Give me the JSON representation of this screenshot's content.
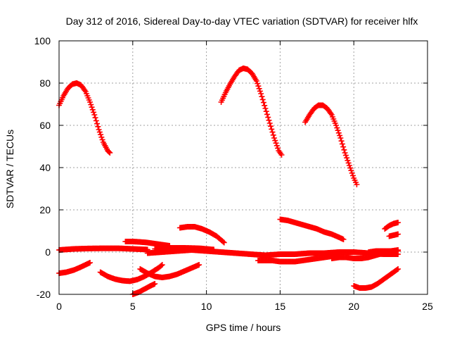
{
  "chart_data": {
    "type": "scatter",
    "title": "Day 312 of 2016, Sidereal Day-to-day VTEC variation (SDTVAR) for receiver hlfx",
    "xlabel": "GPS time / hours",
    "ylabel": "SDTVAR / TECUs",
    "xlim": [
      0,
      25
    ],
    "ylim": [
      -20,
      100
    ],
    "x_ticks": [
      0,
      5,
      10,
      15,
      20,
      25
    ],
    "y_ticks": [
      -20,
      0,
      20,
      40,
      60,
      80,
      100
    ],
    "x_tick_labels": [
      "0",
      "5",
      "10",
      "15",
      "20",
      "25"
    ],
    "y_tick_labels": [
      "-20",
      "0",
      "20",
      "40",
      "60",
      "80",
      "100"
    ],
    "grid": true,
    "marker": "plus",
    "color": "#ff0000",
    "series": [
      {
        "x": [
          0.0,
          0.3,
          0.6,
          0.9,
          1.2,
          1.5,
          1.8,
          2.1,
          2.4,
          2.7,
          3.0,
          3.3,
          3.45
        ],
        "y": [
          69.5,
          74,
          77.5,
          79.5,
          80,
          79,
          76,
          71,
          65,
          58,
          52,
          48,
          47
        ]
      },
      {
        "x": [
          11.0,
          11.3,
          11.6,
          11.9,
          12.2,
          12.5,
          12.8,
          13.1,
          13.4,
          13.7,
          14.0,
          14.3,
          14.6,
          14.9,
          15.1
        ],
        "y": [
          71,
          75.5,
          79.5,
          83,
          86,
          87,
          86.5,
          84.5,
          81,
          75,
          68,
          61,
          54,
          48,
          46
        ]
      },
      {
        "x": [
          16.7,
          17.0,
          17.3,
          17.6,
          17.9,
          18.2,
          18.5,
          18.8,
          19.1,
          19.4,
          19.7,
          20.0,
          20.2
        ],
        "y": [
          61.5,
          65,
          68,
          69.5,
          69.5,
          68,
          65,
          60,
          54,
          47,
          41,
          35,
          32
        ]
      },
      {
        "x": [
          0.0,
          1.0,
          2.0,
          3.0,
          4.0,
          5.0,
          6.0
        ],
        "y": [
          1,
          1.5,
          1.7,
          1.8,
          1.8,
          1.5,
          1.2
        ]
      },
      {
        "x": [
          0.0,
          0.5,
          1.0,
          1.5,
          2.1
        ],
        "y": [
          -10,
          -9.5,
          -8.5,
          -7,
          -5
        ]
      },
      {
        "x": [
          2.8,
          3.3,
          3.8,
          4.3,
          4.8,
          5.3,
          5.8,
          6.3,
          6.8,
          7.0
        ],
        "y": [
          -9.5,
          -11.5,
          -12.8,
          -13.5,
          -13.8,
          -13,
          -11.5,
          -9.5,
          -7.2,
          -6
        ]
      },
      {
        "x": [
          4.5,
          5.0,
          5.5,
          6.0,
          6.5,
          7.0,
          7.5
        ],
        "y": [
          5,
          5,
          4.8,
          4.5,
          4,
          3.5,
          3
        ]
      },
      {
        "x": [
          5.0,
          5.4,
          5.8,
          6.2,
          6.5
        ],
        "y": [
          -20,
          -19,
          -17.5,
          -16,
          -15
        ]
      },
      {
        "x": [
          5.5,
          6.0,
          6.5,
          7.0,
          7.5,
          8.0,
          8.5,
          9.0,
          9.5
        ],
        "y": [
          -8,
          -10,
          -11.5,
          -12,
          -11.5,
          -10.5,
          -9,
          -7.5,
          -6
        ]
      },
      {
        "x": [
          6.0,
          7.0,
          8.0,
          9.0,
          10.0,
          11.0,
          12.0,
          13.0,
          14.0
        ],
        "y": [
          -0.5,
          0,
          0.5,
          1,
          0.5,
          0,
          -0.5,
          -1,
          -1.5
        ]
      },
      {
        "x": [
          6.5,
          7.5,
          8.5,
          9.5,
          10.5
        ],
        "y": [
          1.5,
          2,
          2,
          1.8,
          1.2
        ]
      },
      {
        "x": [
          8.2,
          8.7,
          9.2,
          9.7,
          10.2,
          10.7,
          11.2
        ],
        "y": [
          11.5,
          12,
          12,
          11,
          9.5,
          7.5,
          4.5
        ]
      },
      {
        "x": [
          13.5,
          14.0,
          14.5,
          15.0,
          15.5,
          16.0,
          16.5,
          17.0,
          17.5,
          18.0,
          18.5,
          19.0
        ],
        "y": [
          -4,
          -4,
          -4,
          -4.5,
          -4.5,
          -4.5,
          -4,
          -3.5,
          -3,
          -2.5,
          -2,
          -2
        ]
      },
      {
        "x": [
          14.0,
          15.0,
          16.0,
          17.0,
          18.0,
          19.0,
          20.0,
          21.0,
          22.0,
          23.0
        ],
        "y": [
          -1.5,
          -1,
          -1,
          -0.5,
          -0.5,
          0,
          0,
          -0.5,
          -1,
          -1
        ]
      },
      {
        "x": [
          15.0,
          15.5,
          16.0,
          16.5,
          17.0,
          17.5,
          18.0,
          18.5,
          19.0,
          19.3
        ],
        "y": [
          15.5,
          15,
          14,
          13,
          12,
          11,
          9.5,
          8.5,
          7,
          6
        ]
      },
      {
        "x": [
          18.5,
          19.0,
          19.5,
          20.0,
          20.5,
          21.0,
          21.5,
          22.0,
          22.5,
          23.0
        ],
        "y": [
          -3,
          -2.5,
          -2.5,
          -3,
          -3,
          -2.5,
          -1.5,
          -0.5,
          0.5,
          1
        ]
      },
      {
        "x": [
          21.0,
          21.5,
          22.0,
          22.5,
          23.0
        ],
        "y": [
          0,
          0.5,
          0.5,
          0.5,
          0.5
        ]
      },
      {
        "x": [
          20.0,
          20.4,
          20.8,
          21.2,
          21.6,
          22.0,
          22.4,
          22.8,
          23.0
        ],
        "y": [
          -16,
          -17,
          -17,
          -16.5,
          -15,
          -13,
          -11,
          -9,
          -8
        ]
      },
      {
        "x": [
          22.1,
          22.4,
          22.7,
          23.0
        ],
        "y": [
          11,
          12.5,
          13.5,
          14
        ]
      },
      {
        "x": [
          22.4,
          22.7,
          23.0
        ],
        "y": [
          7.5,
          8,
          8.5
        ]
      }
    ]
  }
}
